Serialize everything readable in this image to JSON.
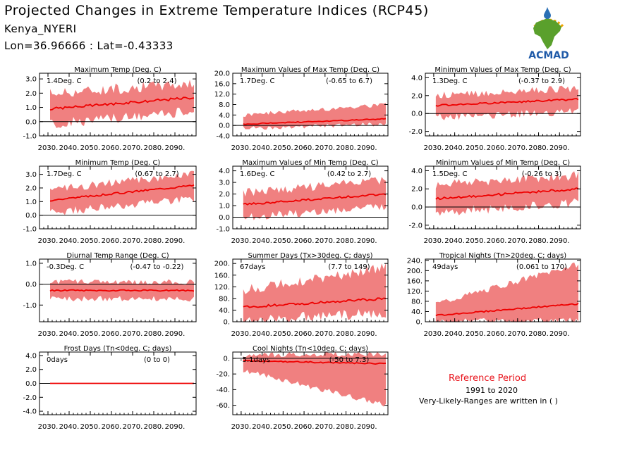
{
  "header": {
    "title": "Projected Changes in Extreme Temperature Indices (RCP45)",
    "location": "Kenya_NYERI",
    "coords": "Lon=36.96666 : Lat=-0.43333"
  },
  "logo": {
    "text": "ACMAD",
    "colors": {
      "africa": "#5aa02c",
      "drop": "#2a6fb5",
      "text": "#1f5aa8",
      "rays": "#f0a400"
    }
  },
  "reference": {
    "title": "Reference Period",
    "years": "1991 to 2020",
    "note": "Very-Likely-Ranges are written in ( )"
  },
  "colors": {
    "band": "#f08080",
    "line": "#ee0000",
    "zero": "#000000"
  },
  "chart_data": [
    {
      "type": "area",
      "title": "Maximum Temp (Deg. C)",
      "value_text": "1.4Deg. C",
      "range_text": "(0.2 to 2.4)",
      "x_ticks": [
        "2030.",
        "2040.",
        "2050.",
        "2060.",
        "2070.",
        "2080.",
        "2090."
      ],
      "xlim": [
        2026,
        2100
      ],
      "yticks": [
        "3.0",
        "2.0",
        "1.0",
        "0.0",
        "-1.0"
      ],
      "ylim": [
        -1.0,
        3.4
      ],
      "median": {
        "start": 0.9,
        "end": 1.7
      },
      "band": {
        "lower_start": -0.2,
        "lower_end": 0.7,
        "upper_start": 2.0,
        "upper_end": 2.7
      }
    },
    {
      "type": "area",
      "title": "Maximum Values of Max Temp (Deg. C)",
      "value_text": "1.7Deg. C",
      "range_text": "(-0.65 to 6.7)",
      "x_ticks": [
        "2030.",
        "2040.",
        "2050.",
        "2060.",
        "2070.",
        "2080.",
        "2090."
      ],
      "xlim": [
        2026,
        2100
      ],
      "yticks": [
        "20.0",
        "16.0",
        "12.0",
        "8.0",
        "4.0",
        "0.0",
        "-4.0"
      ],
      "ylim": [
        -4.0,
        20.0
      ],
      "median": {
        "start": 0.5,
        "end": 2.5
      },
      "band": {
        "lower_start": -1.0,
        "lower_end": 0.5,
        "upper_start": 4.0,
        "upper_end": 8.0
      }
    },
    {
      "type": "area",
      "title": "Minimum Values of Max Temp (Deg. C)",
      "value_text": "1.3Deg. C",
      "range_text": "(-0.37 to 2.9)",
      "x_ticks": [
        "2030.",
        "2040.",
        "2050.",
        "2060.",
        "2070.",
        "2080.",
        "2090."
      ],
      "xlim": [
        2026,
        2100
      ],
      "yticks": [
        "4.0",
        "2.0",
        "0.0",
        "-2.0"
      ],
      "ylim": [
        -2.5,
        4.5
      ],
      "median": {
        "start": 0.9,
        "end": 1.6
      },
      "band": {
        "lower_start": -0.4,
        "lower_end": 0.2,
        "upper_start": 2.0,
        "upper_end": 2.8
      }
    },
    {
      "type": "area",
      "title": "Minimum Temp (Deg. C)",
      "value_text": "1.7Deg. C",
      "range_text": "(0.67 to 2.7)",
      "x_ticks": [
        "2030.",
        "2040.",
        "2050.",
        "2060.",
        "2070.",
        "2080.",
        "2090."
      ],
      "xlim": [
        2026,
        2100
      ],
      "yticks": [
        "3.0",
        "2.0",
        "1.0",
        "0.0",
        "-1.0"
      ],
      "ylim": [
        -1.0,
        3.6
      ],
      "median": {
        "start": 1.1,
        "end": 2.2
      },
      "band": {
        "lower_start": 0.2,
        "lower_end": 1.2,
        "upper_start": 1.9,
        "upper_end": 3.0
      }
    },
    {
      "type": "area",
      "title": "Maximum Values of Min Temp (Deg. C)",
      "value_text": "1.6Deg. C",
      "range_text": "(0.42 to 2.7)",
      "x_ticks": [
        "2030.",
        "2040.",
        "2050.",
        "2060.",
        "2070.",
        "2080.",
        "2090."
      ],
      "xlim": [
        2026,
        2100
      ],
      "yticks": [
        "4.0",
        "3.0",
        "2.0",
        "1.0",
        "0.0",
        "-1.0"
      ],
      "ylim": [
        -1.0,
        4.4
      ],
      "median": {
        "start": 1.1,
        "end": 2.0
      },
      "band": {
        "lower_start": 0.0,
        "lower_end": 0.9,
        "upper_start": 2.1,
        "upper_end": 3.2
      }
    },
    {
      "type": "area",
      "title": "Minimum Values of Min Temp (Deg. C)",
      "value_text": "1.5Deg. C",
      "range_text": "(-0.26 to 3)",
      "x_ticks": [
        "2030.",
        "2040.",
        "2050.",
        "2060.",
        "2070.",
        "2080.",
        "2090."
      ],
      "xlim": [
        2026,
        2100
      ],
      "yticks": [
        "4.0",
        "2.0",
        "0.0",
        "-2.0"
      ],
      "ylim": [
        -2.4,
        4.5
      ],
      "median": {
        "start": 0.9,
        "end": 2.0
      },
      "band": {
        "lower_start": -0.6,
        "lower_end": 0.5,
        "upper_start": 2.5,
        "upper_end": 3.5
      }
    },
    {
      "type": "area",
      "title": "Diurnal Temp Range (Deg. C)",
      "value_text": "-0.3Deg. C",
      "range_text": "(-0.47 to -0.22)",
      "x_ticks": [
        "2030.",
        "2040.",
        "2050.",
        "2060.",
        "2070.",
        "2080.",
        "2090."
      ],
      "xlim": [
        2026,
        2100
      ],
      "yticks": [
        "1.0",
        "0.0",
        "-1.0"
      ],
      "ylim": [
        -1.8,
        1.2
      ],
      "median": {
        "start": -0.3,
        "end": -0.3
      },
      "band": {
        "lower_start": -0.7,
        "lower_end": -0.7,
        "upper_start": 0.1,
        "upper_end": 0.1
      }
    },
    {
      "type": "area",
      "title": "Summer Days (Tx>30deg. C; days)",
      "value_text": "67days",
      "range_text": "(7.7 to 149)",
      "x_ticks": [
        "2030.",
        "2040.",
        "2050.",
        "2060.",
        "2070.",
        "2080.",
        "2090."
      ],
      "xlim": [
        2026,
        2100
      ],
      "yticks": [
        "200.",
        "160.",
        "120.",
        "80.",
        "40.",
        "0."
      ],
      "ylim": [
        0,
        215
      ],
      "median": {
        "start": 50,
        "end": 80
      },
      "band": {
        "lower_start": 5,
        "lower_end": 30,
        "upper_start": 110,
        "upper_end": 185
      }
    },
    {
      "type": "area",
      "title": "Tropical Nights (Tn>20deg. C; days)",
      "value_text": "49days",
      "range_text": "(0.061 to 170)",
      "x_ticks": [
        "2030.",
        "2040.",
        "2050.",
        "2060.",
        "2070.",
        "2080.",
        "2090."
      ],
      "xlim": [
        2026,
        2100
      ],
      "yticks": [
        "240.",
        "200.",
        "160.",
        "120.",
        "80.",
        "40.",
        "0."
      ],
      "ylim": [
        0,
        245
      ],
      "median": {
        "start": 25,
        "end": 70
      },
      "band": {
        "lower_start": 1,
        "lower_end": 5,
        "upper_start": 70,
        "upper_end": 225
      }
    },
    {
      "type": "area",
      "title": "Frost Days (Tn<0deg. C; days)",
      "value_text": "0days",
      "range_text": "(0 to 0)",
      "x_ticks": [
        "2030.",
        "2040.",
        "2050.",
        "2060.",
        "2070.",
        "2080.",
        "2090."
      ],
      "xlim": [
        2026,
        2100
      ],
      "yticks": [
        "4.0",
        "2.0",
        "0.0",
        "-2.0",
        "-4.0"
      ],
      "ylim": [
        -4.5,
        4.5
      ],
      "median": {
        "start": 0,
        "end": 0
      },
      "band": {
        "lower_start": 0,
        "lower_end": 0,
        "upper_start": 0,
        "upper_end": 0
      }
    },
    {
      "type": "area",
      "title": "Cool Nights (Tn<10deg. C; days)",
      "value_text": "-5.1days",
      "range_text": "(-50 to 7.3)",
      "x_ticks": [
        "2030.",
        "2040.",
        "2050.",
        "2060.",
        "2070.",
        "2080.",
        "2090."
      ],
      "xlim": [
        2026,
        2100
      ],
      "yticks": [
        "0.",
        "-20.",
        "-40.",
        "-60."
      ],
      "ylim": [
        -72,
        8
      ],
      "median": {
        "start": -3,
        "end": -7
      },
      "band": {
        "lower_start": -15,
        "lower_end": -60,
        "upper_start": 4,
        "upper_end": 6
      }
    }
  ]
}
